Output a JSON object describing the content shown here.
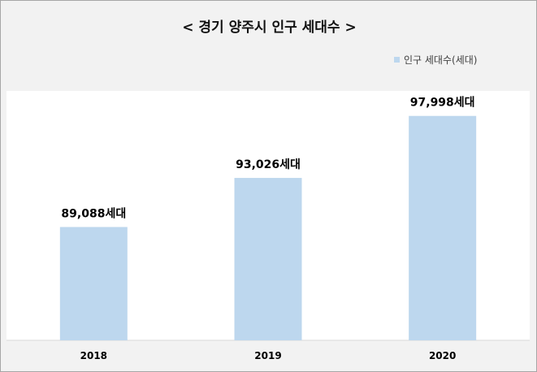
{
  "chart_data": {
    "type": "bar",
    "title": "< 경기 양주시 인구 세대수 >",
    "categories": [
      "2018",
      "2019",
      "2020"
    ],
    "series": [
      {
        "name": "인구 세대수(세대)",
        "values": [
          89088,
          93026,
          97998
        ],
        "labels": [
          "89,088세대",
          "93,026세대",
          "97,998세대"
        ],
        "color": "#bdd7ee"
      }
    ],
    "legend_position": "top-right",
    "grid": false,
    "y_axis_visible": false
  }
}
